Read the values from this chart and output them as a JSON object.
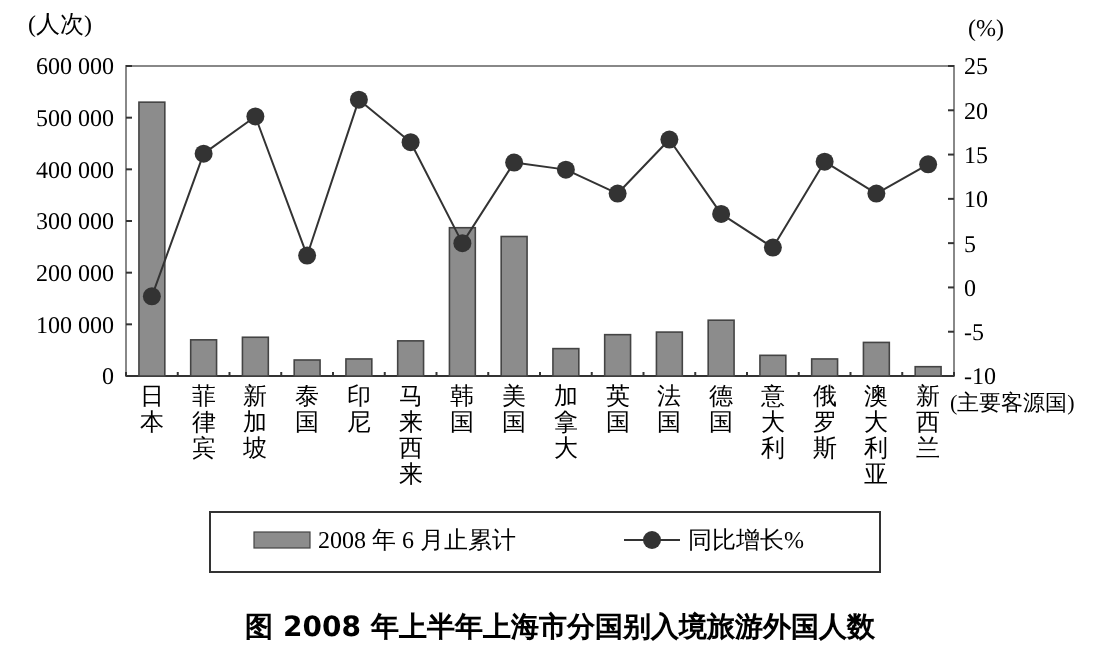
{
  "chart_data": {
    "type": "bar",
    "title": "图  2008 年上半年上海市分国别入境旅游外国人数",
    "xlabel": "(主要客源国)",
    "ylabel": "(人次)",
    "y2label": "(%)",
    "categories": [
      "日本",
      "菲律宾",
      "新加坡",
      "泰国",
      "印尼",
      "马来西来",
      "韩国",
      "美国",
      "加拿大",
      "英国",
      "法国",
      "德国",
      "意大利",
      "俄罗斯",
      "澳大利亚",
      "新西兰"
    ],
    "series": [
      {
        "name": "2008 年 6 月止累计",
        "color": "#8c8c8c",
        "values": [
          530000,
          70000,
          75000,
          31000,
          33000,
          68000,
          287000,
          270000,
          53000,
          80000,
          85000,
          108000,
          40000,
          33000,
          65000,
          18000
        ]
      },
      {
        "name": "同比增长%",
        "type": "line",
        "axis": "y2",
        "color": "#333333",
        "marker": "circle",
        "values": [
          -1,
          15.1,
          19.3,
          3.6,
          21.2,
          16.4,
          5,
          14.1,
          13.3,
          10.6,
          16.7,
          8.3,
          4.5,
          14.2,
          10.6,
          13.9
        ]
      }
    ],
    "ylim": [
      0,
      600000
    ],
    "yticks": [
      0,
      {
        "value": 100000,
        "label": "100 000"
      },
      {
        "value": 200000,
        "label": "200 000"
      },
      {
        "value": 300000,
        "label": "300 000"
      },
      {
        "value": 400000,
        "label": "400 000"
      },
      {
        "value": 500000,
        "label": "500 000"
      },
      {
        "value": 600000,
        "label": "600 000"
      }
    ],
    "y2lim": [
      -10,
      25
    ],
    "y2ticks": [
      -10,
      -5,
      0,
      5,
      10,
      15,
      20,
      25
    ],
    "legend": "bottom",
    "grid": false
  }
}
